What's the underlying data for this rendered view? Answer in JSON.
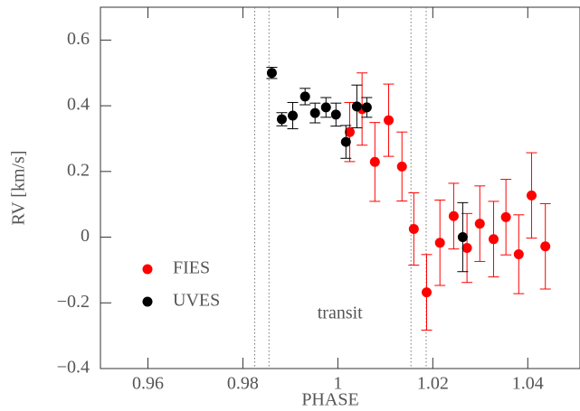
{
  "chart_data": {
    "type": "scatter",
    "xlabel": "PHASE",
    "ylabel": "RV [km/s]",
    "xlim": [
      0.95,
      1.051
    ],
    "ylim": [
      -0.4,
      0.7
    ],
    "xticks": [
      0.96,
      0.98,
      1,
      1.02,
      1.04
    ],
    "yticks": [
      {
        "value": -0.4,
        "label": "−0.4"
      },
      {
        "value": -0.2,
        "label": "−0.2"
      },
      0,
      0.2,
      0.4,
      0.6
    ],
    "vlines": [
      0.9825,
      0.9855,
      1.0154,
      1.0186
    ],
    "annotation": "transit",
    "legend": "lower left",
    "series": [
      {
        "name": "FIES",
        "color": "#ff0000",
        "x": [
          1.0025,
          1.0051,
          1.0078,
          1.0107,
          1.0135,
          1.016,
          1.0187,
          1.0215,
          1.0244,
          1.0272,
          1.0299,
          1.0328,
          1.0354,
          1.0381,
          1.0408,
          1.0437
        ],
        "values": [
          0.32,
          0.39,
          0.229,
          0.356,
          0.215,
          0.025,
          -0.168,
          -0.017,
          0.064,
          -0.033,
          0.041,
          -0.006,
          0.061,
          -0.052,
          0.127,
          -0.028
        ],
        "errors": [
          0.09,
          0.11,
          0.12,
          0.11,
          0.105,
          0.11,
          0.115,
          0.13,
          0.1,
          0.105,
          0.115,
          0.115,
          0.115,
          0.12,
          0.13,
          0.13
        ]
      },
      {
        "name": "UVES",
        "color": "#000000",
        "x": [
          0.9861,
          0.9882,
          0.9905,
          0.9931,
          0.9952,
          0.9975,
          0.9996,
          1.0017,
          1.004,
          1.0061,
          1.0263
        ],
        "values": [
          0.5,
          0.359,
          0.37,
          0.428,
          0.378,
          0.395,
          0.373,
          0.29,
          0.398,
          0.395,
          0.0
        ],
        "errors": [
          0.017,
          0.02,
          0.04,
          0.025,
          0.03,
          0.03,
          0.035,
          0.05,
          0.065,
          0.03,
          0.105
        ]
      }
    ]
  }
}
